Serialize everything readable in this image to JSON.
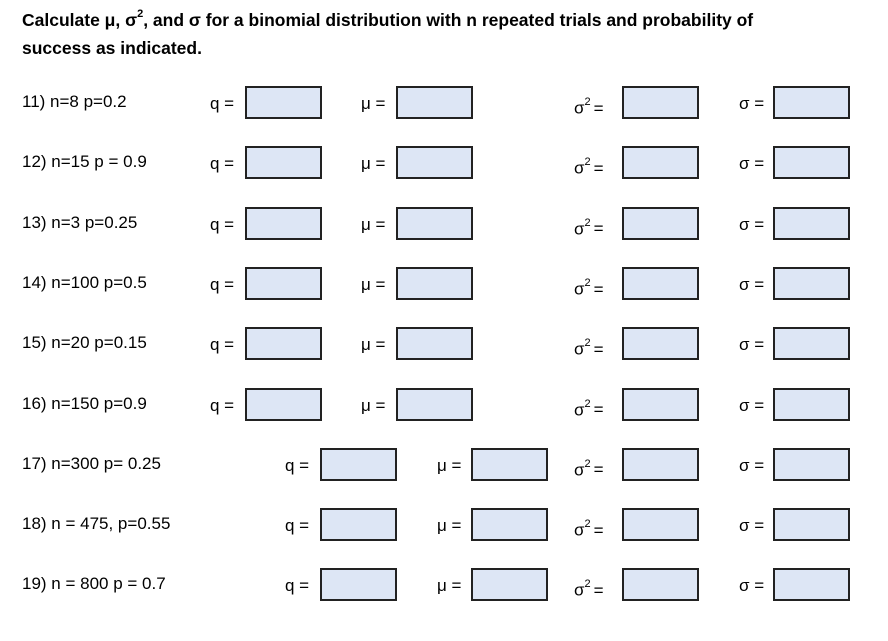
{
  "title": {
    "line1": {
      "before": "Calculate μ, σ",
      "sup": "2",
      "after": ", and σ for a binomial distribution with n repeated trials and probability of"
    },
    "line2": "success as indicated."
  },
  "fields": {
    "q": "q =",
    "mu": "μ =",
    "variance": {
      "symbol": "σ",
      "sup": "2",
      "eq": "="
    },
    "sd": "σ ="
  },
  "problems": [
    {
      "label": "11)  n=8  p=0.2"
    },
    {
      "label": "12) n=15 p = 0.9"
    },
    {
      "label": "13) n=3  p=0.25"
    },
    {
      "label": "14) n=100 p=0.5"
    },
    {
      "label": "15) n=20 p=0.15"
    },
    {
      "label": "16) n=150 p=0.9"
    },
    {
      "label": "17) n=300 p= 0.25"
    },
    {
      "label": "18) n = 475, p=0.55"
    },
    {
      "label": "19) n = 800 p = 0.7"
    }
  ]
}
